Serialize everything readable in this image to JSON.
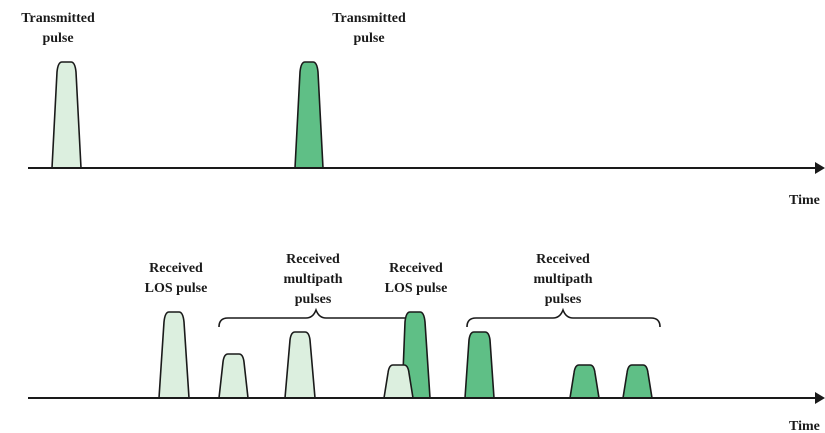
{
  "colors": {
    "light_pulse": "#dcefdf",
    "dark_pulse": "#5fbf86",
    "ink": "#1a1a1a"
  },
  "top": {
    "axis_label": "Time",
    "labels": [
      {
        "lines": [
          "Transmitted",
          "pulse"
        ]
      },
      {
        "lines": [
          "Transmitted",
          "pulse"
        ]
      }
    ]
  },
  "bottom": {
    "axis_label": "Time",
    "labels": [
      {
        "lines": [
          "Received",
          "LOS pulse"
        ]
      },
      {
        "lines": [
          "Received",
          "multipath",
          "pulses"
        ]
      },
      {
        "lines": [
          "Received",
          "LOS pulse"
        ]
      },
      {
        "lines": [
          "Received",
          "multipath",
          "pulses"
        ]
      }
    ]
  }
}
